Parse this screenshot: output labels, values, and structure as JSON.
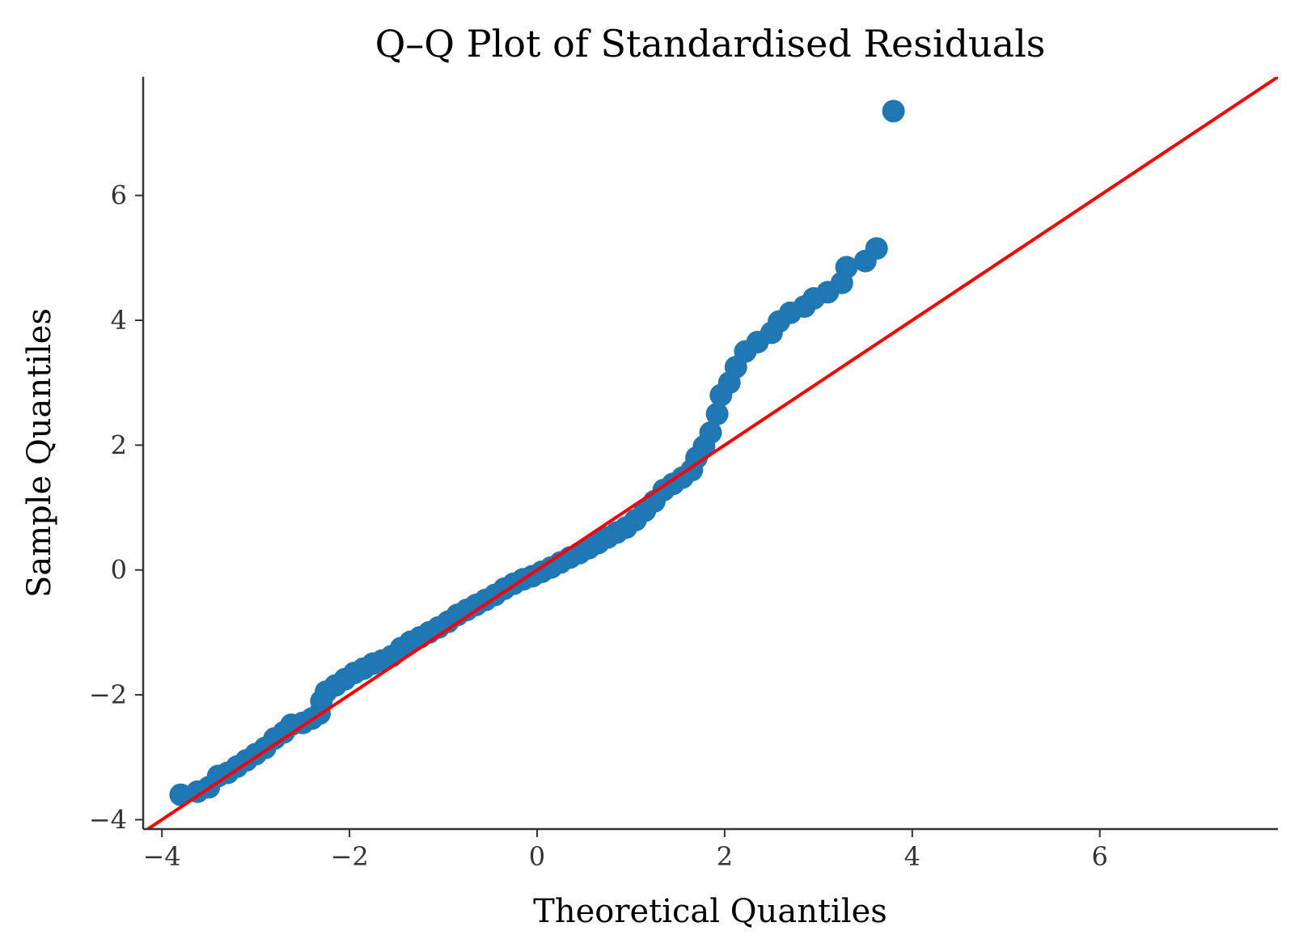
{
  "chart_data": {
    "type": "scatter",
    "title": "Q–Q Plot of Standardised Residuals",
    "xlabel": "Theoretical Quantiles",
    "ylabel": "Sample Quantiles",
    "xlim": [
      -4.2,
      7.9
    ],
    "ylim": [
      -4.15,
      7.9
    ],
    "xticks": [
      {
        "value": -4,
        "label": "−4"
      },
      {
        "value": -2,
        "label": "−2"
      },
      {
        "value": 0,
        "label": "0"
      },
      {
        "value": 2,
        "label": "2"
      },
      {
        "value": 4,
        "label": "4"
      },
      {
        "value": 6,
        "label": "6"
      }
    ],
    "yticks": [
      {
        "value": -4,
        "label": "−4"
      },
      {
        "value": -2,
        "label": "−2"
      },
      {
        "value": 0,
        "label": "0"
      },
      {
        "value": 2,
        "label": "2"
      },
      {
        "value": 4,
        "label": "4"
      },
      {
        "value": 6,
        "label": "6"
      }
    ],
    "grid": false,
    "legend": "none",
    "colors": {
      "points": "#1f77b4",
      "reference_line": "#ff0000",
      "axes": "#333333"
    },
    "reference_line": {
      "slope": 1,
      "intercept": 0
    },
    "series": [
      {
        "points": [
          [
            -3.8,
            -3.6
          ],
          [
            -3.62,
            -3.55
          ],
          [
            -3.5,
            -3.48
          ],
          [
            -3.4,
            -3.3
          ],
          [
            -3.3,
            -3.25
          ],
          [
            -3.2,
            -3.15
          ],
          [
            -3.1,
            -3.05
          ],
          [
            -3.0,
            -2.95
          ],
          [
            -2.9,
            -2.85
          ],
          [
            -2.8,
            -2.7
          ],
          [
            -2.7,
            -2.6
          ],
          [
            -2.62,
            -2.48
          ],
          [
            -2.5,
            -2.45
          ],
          [
            -2.4,
            -2.38
          ],
          [
            -2.32,
            -2.3
          ],
          [
            -2.3,
            -2.1
          ],
          [
            -2.25,
            -1.95
          ],
          [
            -2.15,
            -1.85
          ],
          [
            -2.05,
            -1.75
          ],
          [
            -1.95,
            -1.65
          ],
          [
            -1.85,
            -1.58
          ],
          [
            -1.75,
            -1.5
          ],
          [
            -1.65,
            -1.45
          ],
          [
            -1.55,
            -1.38
          ],
          [
            -1.45,
            -1.25
          ],
          [
            -1.35,
            -1.15
          ],
          [
            -1.25,
            -1.08
          ],
          [
            -1.15,
            -1.0
          ],
          [
            -1.05,
            -0.92
          ],
          [
            -0.95,
            -0.83
          ],
          [
            -0.85,
            -0.72
          ],
          [
            -0.75,
            -0.64
          ],
          [
            -0.65,
            -0.56
          ],
          [
            -0.55,
            -0.48
          ],
          [
            -0.45,
            -0.4
          ],
          [
            -0.35,
            -0.3
          ],
          [
            -0.25,
            -0.22
          ],
          [
            -0.15,
            -0.15
          ],
          [
            -0.05,
            -0.1
          ],
          [
            0.05,
            -0.03
          ],
          [
            0.15,
            0.04
          ],
          [
            0.25,
            0.12
          ],
          [
            0.35,
            0.2
          ],
          [
            0.45,
            0.27
          ],
          [
            0.55,
            0.35
          ],
          [
            0.65,
            0.43
          ],
          [
            0.75,
            0.52
          ],
          [
            0.85,
            0.6
          ],
          [
            0.95,
            0.68
          ],
          [
            1.05,
            0.8
          ],
          [
            1.15,
            0.95
          ],
          [
            1.25,
            1.1
          ],
          [
            1.35,
            1.28
          ],
          [
            1.45,
            1.38
          ],
          [
            1.55,
            1.48
          ],
          [
            1.65,
            1.6
          ],
          [
            1.7,
            1.8
          ],
          [
            1.78,
            1.98
          ],
          [
            1.85,
            2.2
          ],
          [
            1.92,
            2.5
          ],
          [
            1.96,
            2.8
          ],
          [
            2.05,
            3.0
          ],
          [
            2.12,
            3.25
          ],
          [
            2.22,
            3.5
          ],
          [
            2.35,
            3.65
          ],
          [
            2.5,
            3.8
          ],
          [
            2.58,
            3.98
          ],
          [
            2.7,
            4.12
          ],
          [
            2.85,
            4.22
          ],
          [
            2.95,
            4.35
          ],
          [
            3.1,
            4.45
          ],
          [
            3.25,
            4.6
          ],
          [
            3.3,
            4.85
          ],
          [
            3.5,
            4.95
          ],
          [
            3.62,
            5.15
          ],
          [
            3.8,
            7.35
          ]
        ]
      }
    ]
  }
}
